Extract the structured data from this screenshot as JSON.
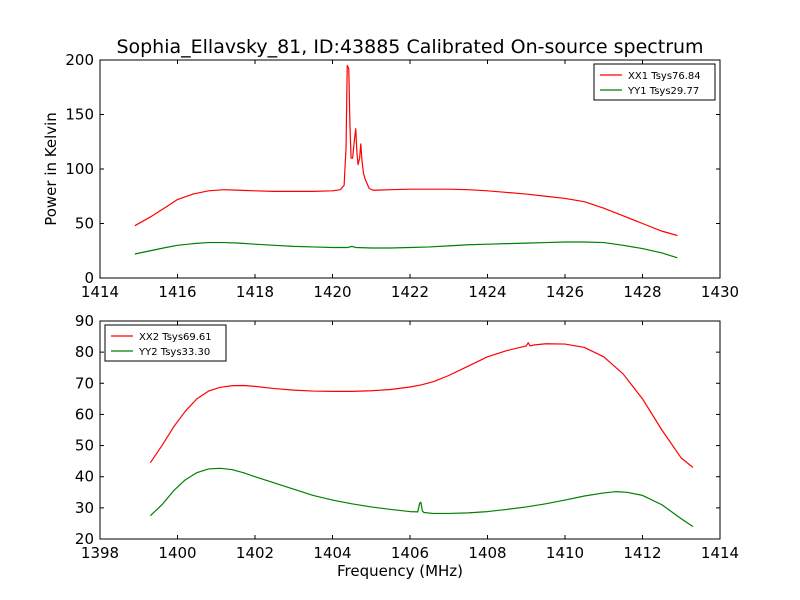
{
  "title": "Sophia_Ellavsky_81, ID:43885 Calibrated On-source spectrum",
  "colors": {
    "series_red": "#ff0000",
    "series_green": "#008000",
    "axes": "#000000",
    "background": "#ffffff"
  },
  "chart_data": [
    {
      "type": "line",
      "title": "Sophia_Ellavsky_81, ID:43885 Calibrated On-source spectrum",
      "xlabel": "",
      "ylabel": "Power in Kelvin",
      "xlim": [
        1414,
        1430
      ],
      "ylim": [
        0,
        200
      ],
      "xticks": [
        "1414",
        "1416",
        "1418",
        "1420",
        "1422",
        "1424",
        "1426",
        "1428",
        "1430"
      ],
      "yticks": [
        "0",
        "50",
        "100",
        "150",
        "200"
      ],
      "grid": false,
      "legend_position": "top-right",
      "series": [
        {
          "name": "XX1 Tsys76.84",
          "color": "#ff0000",
          "x": [
            1414.9,
            1415.3,
            1415.7,
            1416.0,
            1416.4,
            1416.8,
            1417.2,
            1417.6,
            1418.0,
            1418.5,
            1419.0,
            1419.5,
            1420.0,
            1420.2,
            1420.3,
            1420.35,
            1420.38,
            1420.42,
            1420.45,
            1420.48,
            1420.52,
            1420.56,
            1420.6,
            1420.63,
            1420.66,
            1420.7,
            1420.73,
            1420.76,
            1420.8,
            1420.85,
            1420.95,
            1421.05,
            1421.5,
            1422.0,
            1422.5,
            1423.0,
            1423.5,
            1424.0,
            1424.5,
            1425.0,
            1425.5,
            1426.0,
            1426.5,
            1427.0,
            1427.5,
            1428.0,
            1428.5,
            1428.9
          ],
          "y": [
            48,
            56,
            65,
            72,
            77,
            80,
            81,
            80.5,
            80,
            79.5,
            79.5,
            79.5,
            80,
            81,
            85,
            120,
            195,
            192,
            140,
            110,
            110,
            125,
            137,
            115,
            104,
            110,
            123,
            108,
            96,
            90,
            82,
            80.5,
            81,
            81.5,
            81.5,
            81.5,
            81,
            80,
            78.5,
            77,
            75,
            73,
            70,
            64,
            57,
            50,
            43,
            39
          ]
        },
        {
          "name": "YY1 Tsys29.77",
          "color": "#008000",
          "x": [
            1414.9,
            1415.3,
            1415.7,
            1416.0,
            1416.4,
            1416.8,
            1417.2,
            1417.6,
            1418.0,
            1418.5,
            1419.0,
            1419.5,
            1420.0,
            1420.4,
            1420.5,
            1420.6,
            1421.0,
            1421.5,
            1422.0,
            1422.5,
            1423.0,
            1423.5,
            1424.0,
            1424.5,
            1425.0,
            1425.5,
            1426.0,
            1426.5,
            1427.0,
            1427.5,
            1428.0,
            1428.5,
            1428.9
          ],
          "y": [
            22,
            25,
            28,
            30,
            31.5,
            32.5,
            32.5,
            32,
            31,
            30,
            29,
            28.5,
            28,
            28,
            29,
            28,
            27.5,
            27.5,
            28,
            28.5,
            29.5,
            30.5,
            31,
            31.5,
            32,
            32.5,
            33,
            33,
            32.5,
            30,
            27,
            23,
            18.5
          ]
        }
      ]
    },
    {
      "type": "line",
      "title": "",
      "xlabel": "Frequency (MHz)",
      "ylabel": "",
      "xlim": [
        1398,
        1414
      ],
      "ylim": [
        20,
        90
      ],
      "xticks": [
        "1398",
        "1400",
        "1402",
        "1404",
        "1406",
        "1408",
        "1410",
        "1412",
        "1414"
      ],
      "yticks": [
        "20",
        "30",
        "40",
        "50",
        "60",
        "70",
        "80",
        "90"
      ],
      "grid": false,
      "legend_position": "top-left",
      "series": [
        {
          "name": "XX2 Tsys69.61",
          "color": "#ff0000",
          "x": [
            1399.3,
            1399.6,
            1399.9,
            1400.2,
            1400.5,
            1400.8,
            1401.1,
            1401.4,
            1401.7,
            1402.0,
            1402.5,
            1403.0,
            1403.5,
            1404.0,
            1404.5,
            1405.0,
            1405.5,
            1406.0,
            1406.3,
            1406.6,
            1407.0,
            1407.5,
            1408.0,
            1408.5,
            1409.0,
            1409.05,
            1409.1,
            1409.2,
            1409.5,
            1410.0,
            1410.5,
            1411.0,
            1411.5,
            1412.0,
            1412.5,
            1413.0,
            1413.3
          ],
          "y": [
            44.5,
            50,
            56,
            61,
            65,
            67.5,
            68.7,
            69.2,
            69.3,
            69,
            68.3,
            67.8,
            67.5,
            67.4,
            67.4,
            67.6,
            68,
            68.8,
            69.5,
            70.5,
            72.5,
            75.5,
            78.5,
            80.5,
            82,
            83,
            82,
            82.3,
            82.7,
            82.6,
            81.5,
            78.5,
            73,
            65,
            55,
            46,
            43
          ]
        },
        {
          "name": "YY2 Tsys33.30",
          "color": "#008000",
          "x": [
            1399.3,
            1399.6,
            1399.9,
            1400.2,
            1400.5,
            1400.8,
            1401.1,
            1401.4,
            1401.7,
            1402.0,
            1402.5,
            1403.0,
            1403.5,
            1404.0,
            1404.5,
            1405.0,
            1405.5,
            1406.0,
            1406.2,
            1406.25,
            1406.28,
            1406.32,
            1406.36,
            1406.6,
            1407.0,
            1407.5,
            1408.0,
            1408.5,
            1409.0,
            1409.5,
            1410.0,
            1410.5,
            1411.0,
            1411.3,
            1411.6,
            1412.0,
            1412.5,
            1413.0,
            1413.3
          ],
          "y": [
            27.5,
            31,
            35.5,
            39,
            41.3,
            42.5,
            42.7,
            42.3,
            41.3,
            40,
            38,
            36,
            34,
            32.5,
            31.3,
            30.3,
            29.5,
            28.8,
            28.7,
            31.5,
            31.8,
            29,
            28.5,
            28.2,
            28.2,
            28.4,
            28.8,
            29.5,
            30.3,
            31.3,
            32.5,
            33.8,
            34.8,
            35.2,
            35,
            34,
            31,
            26.5,
            24
          ]
        }
      ]
    }
  ]
}
